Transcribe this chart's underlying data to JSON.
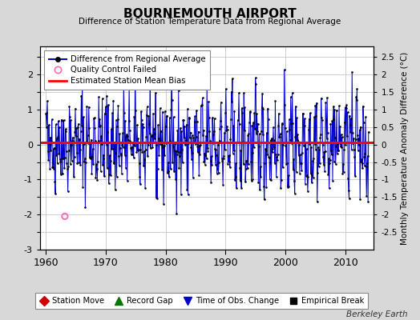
{
  "title": "BOURNEMOUTH AIRPORT",
  "subtitle": "Difference of Station Temperature Data from Regional Average",
  "ylabel": "Monthly Temperature Anomaly Difference (°C)",
  "xmin": 1959.0,
  "xmax": 2014.8,
  "ymin": -3.0,
  "ymax": 2.8,
  "left_yticks": [
    -3,
    -2,
    -1,
    0,
    1,
    2
  ],
  "right_yticks": [
    -2.5,
    -2,
    -1.5,
    -1,
    -0.5,
    0,
    0.5,
    1,
    1.5,
    2,
    2.5
  ],
  "all_yticks": [
    -3,
    -2.5,
    -2,
    -1.5,
    -1,
    -0.5,
    0,
    0.5,
    1,
    1.5,
    2,
    2.5
  ],
  "xticks": [
    1960,
    1970,
    1980,
    1990,
    2000,
    2010
  ],
  "mean_bias": 0.05,
  "bias_color": "#ff0000",
  "line_color": "#0000cd",
  "fill_color": "#8888ff",
  "dot_color": "#000000",
  "qc_color": "#ff69b4",
  "background_color": "#d8d8d8",
  "plot_bg_color": "#ffffff",
  "grid_color": "#bbbbbb",
  "seed": 42,
  "n_months": 648,
  "start_year": 1960.0,
  "qc_time": 1963.17,
  "qc_val": -2.05,
  "watermark": "Berkeley Earth"
}
